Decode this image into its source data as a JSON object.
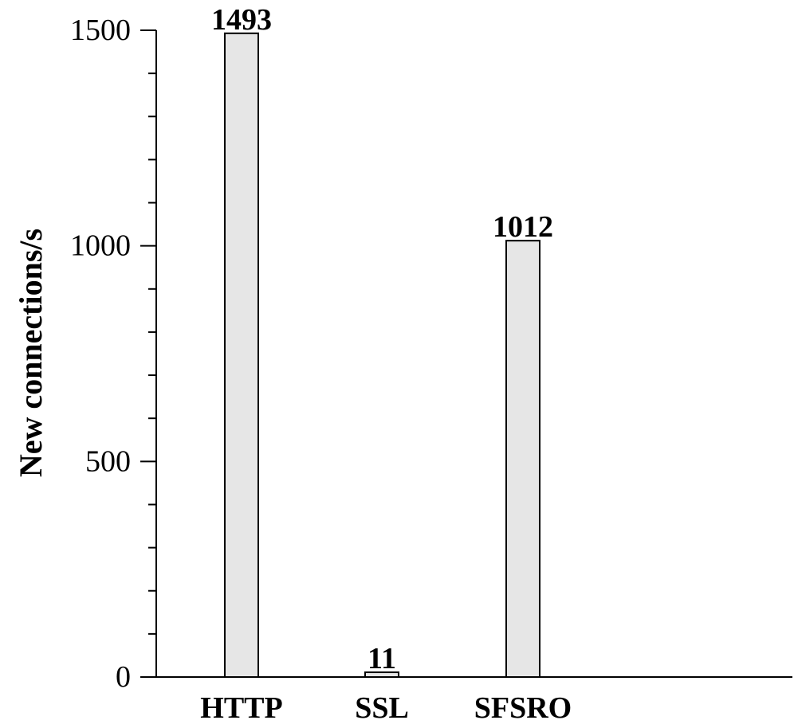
{
  "chart_data": {
    "type": "bar",
    "title": "",
    "xlabel": "",
    "ylabel": "New connections/s",
    "categories": [
      "HTTP",
      "SSL",
      "SFSRO"
    ],
    "values": [
      1493,
      11,
      1012
    ],
    "data_labels": [
      "1493",
      "11",
      "1012"
    ],
    "ylim": [
      0,
      1500
    ],
    "yticks": [
      0,
      500,
      1000,
      1500
    ],
    "ytick_labels": [
      "0",
      "500",
      "1000",
      "1500"
    ],
    "minor_tick_step": 100,
    "grid": false,
    "legend": "none",
    "colors": {
      "bar_fill": "#e6e6e6",
      "bar_stroke": "#000000",
      "axis": "#000000"
    }
  }
}
